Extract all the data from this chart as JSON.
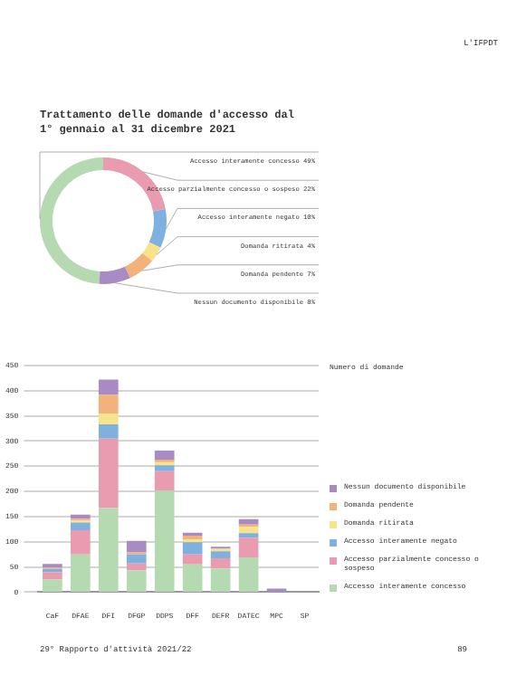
{
  "chart_data": [
    {
      "type": "donut",
      "title": "Trattamento delle domande d'accesso dal 1° gennaio al 31 dicembre 2021",
      "categories": [
        "Accesso interamente concesso",
        "Accesso parzialmente concesso o sospeso",
        "Accesso interamente negato",
        "Domanda ritirata",
        "Domanda pendente",
        "Nessun documento disponibile"
      ],
      "values": [
        49,
        22,
        10,
        4,
        7,
        8
      ],
      "value_labels": [
        "49%",
        "22%",
        "10%",
        "4%",
        "7%",
        "8%"
      ],
      "colors": [
        "#b5d9b0",
        "#e99bb0",
        "#7fb0e0",
        "#f7e48a",
        "#f2b27a",
        "#a98bc4"
      ],
      "annotations": [
        "L'IFPDT",
        "29° Rapporto d'attività 2021/22",
        "89"
      ]
    },
    {
      "type": "bar",
      "stacked": true,
      "ylabel": "Numero di domande",
      "legend": "right",
      "grid": "y",
      "categories": [
        "CaF",
        "DFAE",
        "DFI",
        "DFGP",
        "DDPS",
        "DFF",
        "DEFR",
        "DATEC",
        "MPC",
        "SP"
      ],
      "series": [
        {
          "name": "Accesso interamente concesso",
          "color": "#b5d9b0",
          "values": [
            25,
            75,
            167,
            43,
            201,
            55,
            47,
            69,
            0,
            0
          ]
        },
        {
          "name": "Accesso parzialmente concesso o sospeso",
          "color": "#e99bb0",
          "values": [
            15,
            48,
            138,
            14,
            39,
            20,
            20,
            39,
            0,
            0
          ]
        },
        {
          "name": "Accesso interamente negato",
          "color": "#7fb0e0",
          "values": [
            6,
            15,
            28,
            18,
            12,
            24,
            14,
            9,
            0,
            0
          ]
        },
        {
          "name": "Domanda ritirata",
          "color": "#f7e48a",
          "values": [
            0,
            4,
            21,
            0,
            6,
            6,
            5,
            12,
            0,
            0
          ]
        },
        {
          "name": "Domanda pendente",
          "color": "#f2b27a",
          "values": [
            3,
            4,
            38,
            4,
            5,
            7,
            0,
            5,
            0,
            0
          ]
        },
        {
          "name": "Nessun documento disponibile",
          "color": "#a98bc4",
          "values": [
            7,
            8,
            30,
            23,
            18,
            6,
            4,
            11,
            7,
            0
          ]
        }
      ],
      "ylim": [
        0,
        450
      ],
      "yticks": [
        0,
        50,
        100,
        150,
        200,
        250,
        300,
        350,
        400,
        450
      ]
    }
  ]
}
